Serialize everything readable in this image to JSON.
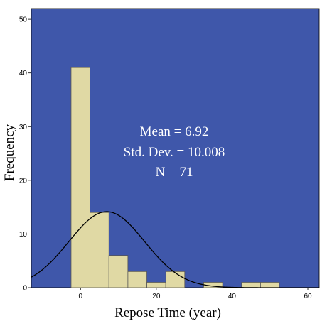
{
  "chart_data": {
    "type": "bar",
    "subtype": "histogram",
    "xlabel": "Repose Time (year)",
    "ylabel": "Frequency",
    "xlim": [
      -13,
      63
    ],
    "ylim": [
      0,
      52
    ],
    "x_ticks": [
      0,
      20,
      40,
      60
    ],
    "y_ticks": [
      0,
      10,
      20,
      30,
      40,
      50
    ],
    "bin_width": 5,
    "bins": [
      {
        "start": -2.5,
        "end": 2.5,
        "count": 41
      },
      {
        "start": 2.5,
        "end": 7.5,
        "count": 14
      },
      {
        "start": 7.5,
        "end": 12.5,
        "count": 6
      },
      {
        "start": 12.5,
        "end": 17.5,
        "count": 3
      },
      {
        "start": 17.5,
        "end": 22.5,
        "count": 1
      },
      {
        "start": 22.5,
        "end": 27.5,
        "count": 3
      },
      {
        "start": 27.5,
        "end": 32.5,
        "count": 0
      },
      {
        "start": 32.5,
        "end": 37.5,
        "count": 1
      },
      {
        "start": 37.5,
        "end": 42.5,
        "count": 0
      },
      {
        "start": 42.5,
        "end": 47.5,
        "count": 1
      },
      {
        "start": 47.5,
        "end": 52.5,
        "count": 1
      }
    ],
    "normal_curve": {
      "mean": 6.92,
      "sd": 10.008,
      "n": 71
    },
    "stats": {
      "mean_text": "Mean = 6.92",
      "sd_text": "Std. Dev. = 10.008",
      "n_text": "N = 71"
    },
    "grid": false,
    "colors": {
      "plot_background": "#3f57aa",
      "bar_fill": "#e0d9a4",
      "bar_stroke": "#555555",
      "curve": "#000000",
      "stat_text": "#ffffff"
    }
  }
}
